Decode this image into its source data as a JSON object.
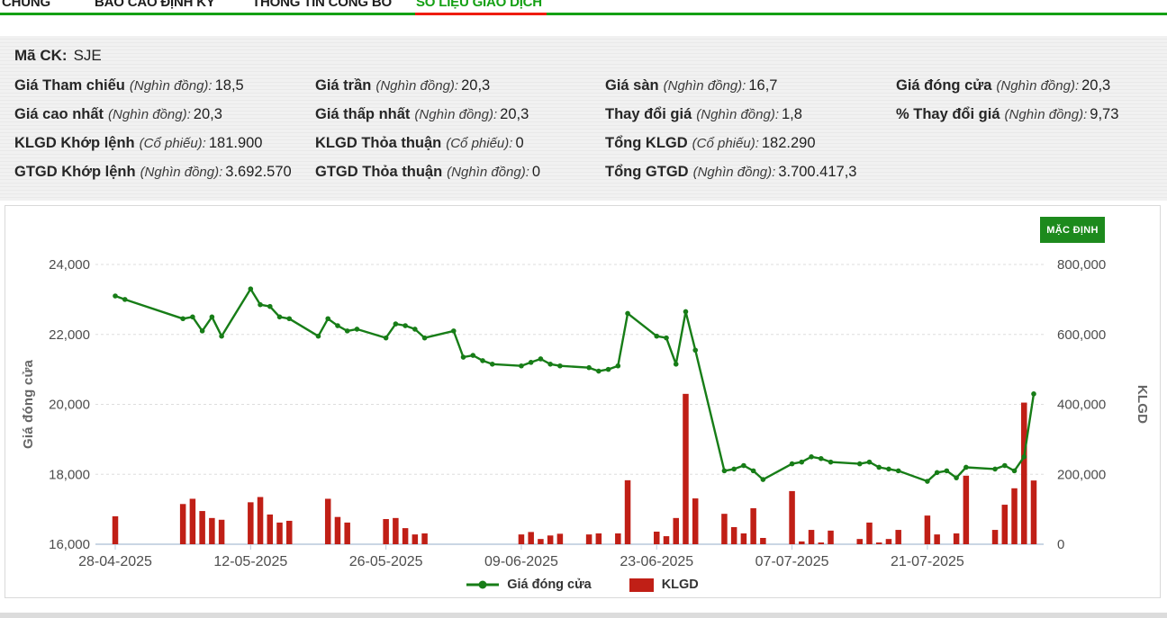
{
  "nav": {
    "items": [
      {
        "label": "CHUNG",
        "active": false
      },
      {
        "label": "BÁO CÁO ĐỊNH KỲ",
        "active": false
      },
      {
        "label": "THÔNG TIN CÔNG BỐ",
        "active": false
      },
      {
        "label": "SỐ LIỆU GIAO DỊCH",
        "active": true
      }
    ],
    "underline_color": "#14a014",
    "active_underline_color": "#ee1c0c"
  },
  "summary": {
    "ticker_label": "Mã CK:",
    "ticker": "SJE",
    "rows": [
      [
        {
          "label": "Giá Tham chiếu",
          "unit": "(Nghìn đồng):",
          "value": "18,5"
        },
        {
          "label": "Giá trần",
          "unit": "(Nghìn đồng):",
          "value": "20,3"
        },
        {
          "label": "Giá sàn",
          "unit": "(Nghìn đồng):",
          "value": "16,7"
        },
        {
          "label": "Giá đóng cửa",
          "unit": "(Nghìn đồng):",
          "value": "20,3"
        }
      ],
      [
        {
          "label": "Giá cao nhất",
          "unit": "(Nghìn đồng):",
          "value": "20,3"
        },
        {
          "label": "Giá thấp nhất",
          "unit": "(Nghìn đồng):",
          "value": "20,3"
        },
        {
          "label": "Thay đổi giá",
          "unit": "(Nghìn đồng):",
          "value": "1,8"
        },
        {
          "label": "% Thay đổi giá",
          "unit": "(Nghìn đồng):",
          "value": "9,73"
        }
      ],
      [
        {
          "label": "KLGD Khớp lệnh",
          "unit": "(Cổ phiếu):",
          "value": "181.900"
        },
        {
          "label": "KLGD Thỏa thuận",
          "unit": "(Cổ phiếu):",
          "value": "0"
        },
        {
          "label": "Tổng KLGD",
          "unit": "(Cổ phiếu):",
          "value": "182.290"
        },
        null
      ],
      [
        {
          "label": "GTGD Khớp lệnh",
          "unit": "(Nghìn đồng):",
          "value": "3.692.570"
        },
        {
          "label": "GTGD Thỏa thuận",
          "unit": "(Nghìn đồng):",
          "value": "0"
        },
        {
          "label": "Tổng GTGD",
          "unit": "(Nghìn đồng):",
          "value": "3.700.417,3"
        },
        null
      ]
    ]
  },
  "chart": {
    "default_button": "MẶC ĐỊNH",
    "y_left_ticks": [
      "16,000",
      "18,000",
      "20,000",
      "22,000",
      "24,000"
    ],
    "y_right_ticks": [
      "0",
      "200,000",
      "400,000",
      "600,000",
      "800,000"
    ],
    "x_ticks": [
      "28-04-2025",
      "12-05-2025",
      "26-05-2025",
      "09-06-2025",
      "23-06-2025",
      "07-07-2025",
      "21-07-2025"
    ],
    "legend": [
      {
        "label": "Giá đóng cửa",
        "type": "line",
        "color": "#177d17"
      },
      {
        "label": "KLGD",
        "type": "bar",
        "color": "#c01f16"
      }
    ]
  },
  "chart_data": {
    "type": "line+bar",
    "title": "",
    "y_left": {
      "label": "Giá đóng cửa",
      "range": [
        16000,
        24000
      ],
      "tick_step": 2000
    },
    "y_right": {
      "label": "KLGD",
      "range": [
        0,
        800000
      ],
      "tick_step": 200000
    },
    "x_tick_labels": [
      "28-04-2025",
      "12-05-2025",
      "26-05-2025",
      "09-06-2025",
      "23-06-2025",
      "07-07-2025",
      "21-07-2025"
    ],
    "grid": true,
    "legend_position": "bottom",
    "x_dates": [
      "28-04-2025",
      "29-04-2025",
      "05-05-2025",
      "06-05-2025",
      "07-05-2025",
      "08-05-2025",
      "09-05-2025",
      "12-05-2025",
      "13-05-2025",
      "14-05-2025",
      "15-05-2025",
      "16-05-2025",
      "19-05-2025",
      "20-05-2025",
      "21-05-2025",
      "22-05-2025",
      "23-05-2025",
      "26-05-2025",
      "27-05-2025",
      "28-05-2025",
      "29-05-2025",
      "30-05-2025",
      "02-06-2025",
      "03-06-2025",
      "04-06-2025",
      "05-06-2025",
      "06-06-2025",
      "09-06-2025",
      "10-06-2025",
      "11-06-2025",
      "12-06-2025",
      "13-06-2025",
      "16-06-2025",
      "17-06-2025",
      "18-06-2025",
      "19-06-2025",
      "20-06-2025",
      "23-06-2025",
      "24-06-2025",
      "25-06-2025",
      "26-06-2025",
      "27-06-2025",
      "30-06-2025",
      "01-07-2025",
      "02-07-2025",
      "03-07-2025",
      "04-07-2025",
      "07-07-2025",
      "08-07-2025",
      "09-07-2025",
      "10-07-2025",
      "11-07-2025",
      "14-07-2025",
      "15-07-2025",
      "16-07-2025",
      "17-07-2025",
      "18-07-2025",
      "21-07-2025",
      "22-07-2025",
      "23-07-2025",
      "24-07-2025",
      "25-07-2025",
      "28-07-2025",
      "29-07-2025",
      "30-07-2025",
      "31-07-2025",
      "01-08-2025"
    ],
    "series": [
      {
        "name": "Giá đóng cửa",
        "type": "line",
        "axis": "left",
        "color": "#177d17",
        "values": [
          23100,
          23000,
          22450,
          22500,
          22100,
          22500,
          21950,
          23300,
          22850,
          22800,
          22500,
          22450,
          21950,
          22450,
          22250,
          22100,
          22150,
          21900,
          22300,
          22250,
          22150,
          21900,
          22100,
          21350,
          21400,
          21250,
          21150,
          21100,
          21200,
          21300,
          21150,
          21100,
          21050,
          20950,
          21000,
          21100,
          22600,
          21950,
          21900,
          21150,
          22650,
          21550,
          18100,
          18150,
          18250,
          18100,
          17850,
          18300,
          18350,
          18500,
          18450,
          18350,
          18300,
          18350,
          18200,
          18150,
          18100,
          17800,
          18050,
          18100,
          17900,
          18200,
          18150,
          18250,
          18100,
          18500,
          20300
        ]
      },
      {
        "name": "KLGD",
        "type": "bar",
        "axis": "right",
        "color": "#c01f16",
        "values": [
          80000,
          0,
          115000,
          130000,
          95000,
          75000,
          70000,
          120000,
          135000,
          85000,
          62000,
          67000,
          0,
          130000,
          78000,
          62000,
          0,
          72000,
          75000,
          46000,
          28000,
          31000,
          0,
          0,
          0,
          0,
          0,
          28000,
          35000,
          15000,
          25000,
          30000,
          28000,
          31000,
          0,
          31000,
          183000,
          36000,
          23000,
          75000,
          430000,
          131000,
          87000,
          49000,
          31000,
          103000,
          18000,
          152000,
          8000,
          41000,
          5000,
          39000,
          15000,
          62000,
          5000,
          15000,
          41000,
          82000,
          28000,
          0,
          31000,
          196000,
          41000,
          113000,
          160000,
          405000,
          182290
        ]
      }
    ]
  }
}
